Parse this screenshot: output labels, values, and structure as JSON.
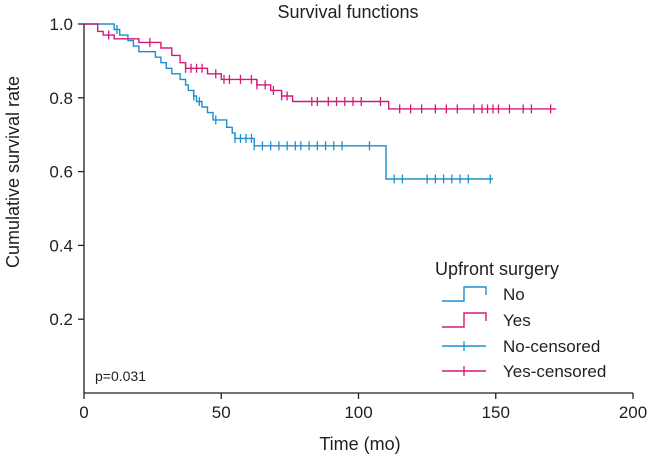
{
  "chart_data": {
    "type": "line",
    "title": "Survival functions",
    "xlabel": "Time (mo)",
    "ylabel": "Cumulative survival rate",
    "xlim": [
      0,
      200
    ],
    "ylim": [
      0,
      1.0
    ],
    "xticks": [
      0,
      50,
      100,
      150,
      200
    ],
    "xtick_labels": [
      "0",
      "50",
      "100",
      "150",
      "200"
    ],
    "yticks": [
      0.2,
      0.4,
      0.6,
      0.8,
      1.0
    ],
    "ytick_labels": [
      "0.2",
      "0.4",
      "0.6",
      "0.8",
      "1.0"
    ],
    "grid": false,
    "legend_title": "Upfront surgery",
    "legend_position": "bottom-right",
    "annotation": "p=0.031",
    "colors": {
      "No": "#1b8fd0",
      "Yes": "#d6187a"
    },
    "legend": [
      {
        "label": "No",
        "series": "No",
        "kind": "step"
      },
      {
        "label": "Yes",
        "series": "Yes",
        "kind": "step"
      },
      {
        "label": "No-censored",
        "series": "No",
        "kind": "censor"
      },
      {
        "label": "Yes-censored",
        "series": "Yes",
        "kind": "censor"
      }
    ],
    "series": [
      {
        "name": "No",
        "steps": [
          [
            0,
            1.0
          ],
          [
            11,
            0.985
          ],
          [
            13,
            0.97
          ],
          [
            16,
            0.955
          ],
          [
            18,
            0.94
          ],
          [
            20,
            0.925
          ],
          [
            26,
            0.91
          ],
          [
            28,
            0.895
          ],
          [
            30,
            0.88
          ],
          [
            32,
            0.865
          ],
          [
            35,
            0.85
          ],
          [
            37,
            0.835
          ],
          [
            38,
            0.82
          ],
          [
            40,
            0.805
          ],
          [
            41,
            0.79
          ],
          [
            43,
            0.775
          ],
          [
            45,
            0.76
          ],
          [
            47,
            0.74
          ],
          [
            52,
            0.72
          ],
          [
            54,
            0.705
          ],
          [
            55,
            0.69
          ],
          [
            62,
            0.67
          ],
          [
            110,
            0.58
          ],
          [
            149,
            0.58
          ]
        ],
        "censored": [
          [
            12,
            0.985
          ],
          [
            40,
            0.805
          ],
          [
            42,
            0.79
          ],
          [
            48,
            0.74
          ],
          [
            55,
            0.69
          ],
          [
            57,
            0.69
          ],
          [
            59,
            0.69
          ],
          [
            61,
            0.69
          ],
          [
            62,
            0.67
          ],
          [
            65,
            0.67
          ],
          [
            68,
            0.67
          ],
          [
            71,
            0.67
          ],
          [
            74,
            0.67
          ],
          [
            77,
            0.67
          ],
          [
            79,
            0.67
          ],
          [
            82,
            0.67
          ],
          [
            85,
            0.67
          ],
          [
            88,
            0.67
          ],
          [
            91,
            0.67
          ],
          [
            94,
            0.67
          ],
          [
            104,
            0.67
          ],
          [
            113,
            0.58
          ],
          [
            116,
            0.58
          ],
          [
            125,
            0.58
          ],
          [
            128,
            0.58
          ],
          [
            131,
            0.58
          ],
          [
            134,
            0.58
          ],
          [
            137,
            0.58
          ],
          [
            140,
            0.58
          ],
          [
            148,
            0.58
          ]
        ]
      },
      {
        "name": "Yes",
        "steps": [
          [
            0,
            1.0
          ],
          [
            5,
            0.98
          ],
          [
            7,
            0.97
          ],
          [
            11,
            0.96
          ],
          [
            20,
            0.95
          ],
          [
            28,
            0.935
          ],
          [
            32,
            0.915
          ],
          [
            35,
            0.895
          ],
          [
            37,
            0.88
          ],
          [
            45,
            0.865
          ],
          [
            50,
            0.85
          ],
          [
            63,
            0.835
          ],
          [
            68,
            0.82
          ],
          [
            72,
            0.805
          ],
          [
            76,
            0.79
          ],
          [
            85,
            0.79
          ],
          [
            111,
            0.77
          ],
          [
            113,
            0.77
          ],
          [
            172,
            0.77
          ]
        ],
        "censored": [
          [
            9,
            0.97
          ],
          [
            24,
            0.95
          ],
          [
            37,
            0.88
          ],
          [
            39,
            0.88
          ],
          [
            41,
            0.88
          ],
          [
            43,
            0.88
          ],
          [
            48,
            0.865
          ],
          [
            51,
            0.85
          ],
          [
            53,
            0.85
          ],
          [
            57,
            0.85
          ],
          [
            61,
            0.85
          ],
          [
            63,
            0.835
          ],
          [
            66,
            0.835
          ],
          [
            69,
            0.82
          ],
          [
            72,
            0.805
          ],
          [
            74,
            0.805
          ],
          [
            83,
            0.79
          ],
          [
            85,
            0.79
          ],
          [
            89,
            0.79
          ],
          [
            92,
            0.79
          ],
          [
            95,
            0.79
          ],
          [
            98,
            0.79
          ],
          [
            101,
            0.79
          ],
          [
            108,
            0.79
          ],
          [
            115,
            0.77
          ],
          [
            119,
            0.77
          ],
          [
            123,
            0.77
          ],
          [
            128,
            0.77
          ],
          [
            132,
            0.77
          ],
          [
            136,
            0.77
          ],
          [
            142,
            0.77
          ],
          [
            145,
            0.77
          ],
          [
            147,
            0.77
          ],
          [
            149,
            0.77
          ],
          [
            151,
            0.77
          ],
          [
            155,
            0.77
          ],
          [
            160,
            0.77
          ],
          [
            163,
            0.77
          ],
          [
            170,
            0.77
          ]
        ]
      }
    ]
  }
}
